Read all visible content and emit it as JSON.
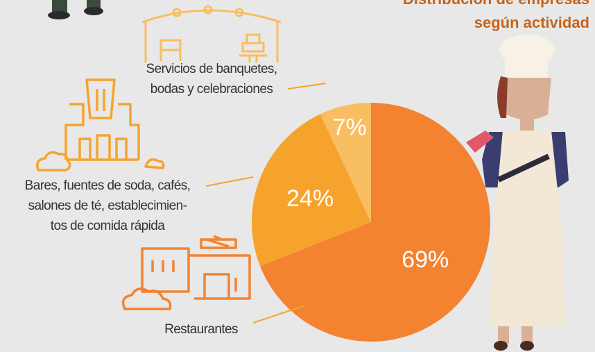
{
  "chart_data": {
    "type": "pie",
    "title": [
      "Distribución de empresas",
      "según actividad"
    ],
    "categories": [
      [
        "Restaurantes"
      ],
      [
        "Bares, fuentes de soda, cafés,",
        "salones de té, establecimien-",
        "tos de comida rápida"
      ],
      [
        "Servicios de banquetes,",
        "bodas y celebraciones"
      ]
    ],
    "values": [
      69,
      24,
      7
    ],
    "value_labels": [
      "69%",
      "24%",
      "7%"
    ],
    "colors": [
      "#f38330",
      "#f6a32e",
      "#f9bd62"
    ]
  }
}
